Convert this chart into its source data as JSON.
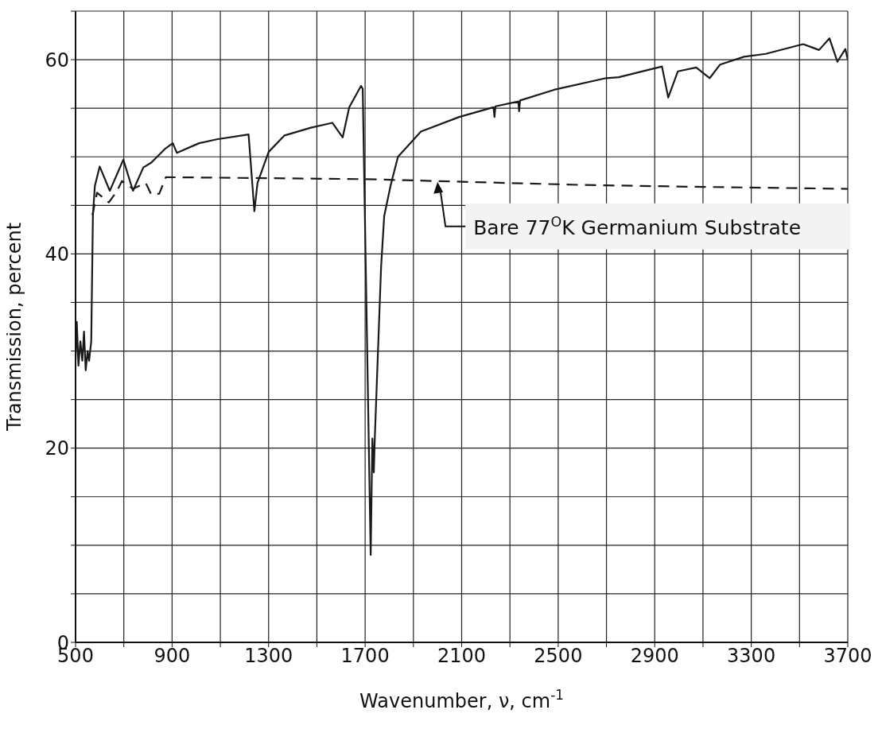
{
  "chart_data": {
    "type": "line",
    "xlabel": "Wavenumber, ν, cm$^{-1}$",
    "ylabel": "Transmission, percent",
    "xlim": [
      500,
      3700
    ],
    "ylim": [
      0,
      65
    ],
    "xticks": [
      500,
      {
        "value": 700,
        "label": null
      },
      900,
      {
        "value": 1100,
        "label": null
      },
      1300,
      {
        "value": 1500,
        "label": null
      },
      1700,
      {
        "value": 1900,
        "label": null
      },
      2100,
      {
        "value": 2300,
        "label": null
      },
      2500,
      {
        "value": 2700,
        "label": null
      },
      2900,
      {
        "value": 3100,
        "label": null
      },
      3300,
      {
        "value": 3500,
        "label": null
      },
      3700
    ],
    "yticks": [
      0,
      {
        "value": 5,
        "label": null
      },
      {
        "value": 10,
        "label": null
      },
      {
        "value": 15,
        "label": null
      },
      20,
      {
        "value": 25,
        "label": null
      },
      {
        "value": 30,
        "label": null
      },
      {
        "value": 35,
        "label": null
      },
      40,
      {
        "value": 45,
        "label": null
      },
      {
        "value": 50,
        "label": null
      },
      {
        "value": 55,
        "label": null
      },
      60,
      {
        "value": 65,
        "label": null
      }
    ],
    "grid": true,
    "marker": "none",
    "series": [
      {
        "color": "#1a1a1a",
        "line_style": "solid",
        "x": [
          500,
          505,
          512,
          520,
          528,
          535,
          542,
          550,
          556,
          565,
          572,
          580,
          600,
          642,
          698,
          738,
          781,
          814,
          870,
          903,
          920,
          1012,
          1085,
          1217,
          1241,
          1254,
          1300,
          1366,
          1475,
          1564,
          1607,
          1634,
          1683,
          1690,
          1723,
          1730,
          1736,
          1740,
          1766,
          1779,
          1806,
          1836,
          1931,
          2090,
          2232,
          2236,
          2240,
          2335,
          2338,
          2342,
          2483,
          2698,
          2751,
          2930,
          2956,
          2996,
          3072,
          3128,
          3171,
          3270,
          3360,
          3515,
          3581,
          3624,
          3657,
          3690,
          3700
        ],
        "values": [
          29,
          33,
          28.5,
          31,
          29,
          32,
          28,
          30,
          29,
          31,
          44,
          47,
          49,
          46.5,
          49.7,
          46.5,
          48.9,
          49.4,
          50.8,
          51.4,
          50.4,
          51.4,
          51.8,
          52.3,
          44.4,
          47.3,
          50.5,
          52.2,
          53,
          53.5,
          52,
          55.1,
          57.3,
          57,
          9,
          21,
          17.5,
          21,
          38.6,
          43.9,
          47.1,
          50,
          52.6,
          54.1,
          55.1,
          54.1,
          55.2,
          55.7,
          54.7,
          55.8,
          56.9,
          58.1,
          58.2,
          59.3,
          56.1,
          58.8,
          59.2,
          58.1,
          59.5,
          60.3,
          60.6,
          61.6,
          61,
          62.2,
          59.8,
          61.1,
          60
        ]
      },
      {
        "color": "#1a1a1a",
        "line_style": "dashed",
        "x": [
          570,
          589,
          638,
          672,
          692,
          738,
          791,
          814,
          847,
          874,
          1300,
          1700,
          2000,
          2600,
          3100,
          3700
        ],
        "values": [
          44,
          46.3,
          45.3,
          46.5,
          47.5,
          46.7,
          47.3,
          46.1,
          46.2,
          47.9,
          47.8,
          47.7,
          47.5,
          47.1,
          46.9,
          46.7
        ]
      }
    ],
    "annotations": [
      {
        "text": "Bare 77$^{O}$K Germanium Substrate",
        "x": 2000,
        "y": 47.5
      }
    ]
  }
}
